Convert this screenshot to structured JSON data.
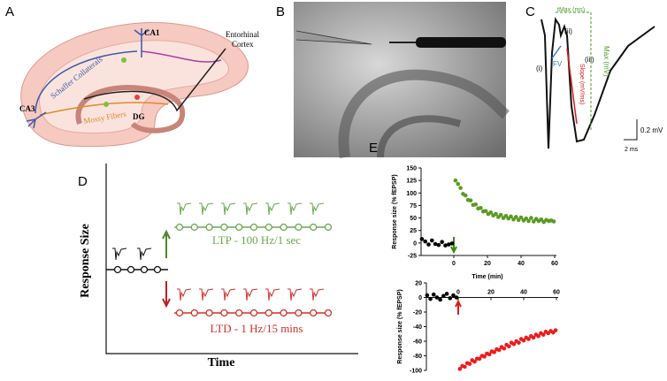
{
  "panels": {
    "a": {
      "label": "A",
      "ca1": "CA1",
      "entorhinal_cortex": [
        "Entorhinal",
        "Cortex"
      ],
      "schaffer": "Schaffer Collaterals",
      "ca3": "CA3",
      "mossy": "Mossy Fibers",
      "dg": "DG"
    },
    "b": {
      "label": "B"
    },
    "c": {
      "label": "C",
      "tmax": "tMax (ms)",
      "ii": "(ii)",
      "max": "Max (mV)",
      "i": "(i)",
      "fv": "FV",
      "slope": "Slope (mV/ms)",
      "iii": "(iii)",
      "scale_v": "0.2 mV",
      "scale_t": "2 ms"
    },
    "d": {
      "label": "D",
      "y_label": "Response Size",
      "x_label": "Time",
      "ltp": "LTP - 100 Hz/1 sec",
      "ltd": "LTD - 1 Hz/15 mins"
    },
    "e": {
      "label": "E"
    }
  },
  "chart_data": [
    {
      "type": "scatter",
      "ylabel": "Response size (% fEPSP)",
      "xlabel": "Time (min)",
      "xlim": [
        -20,
        60
      ],
      "xticks": [
        0,
        20,
        40,
        60
      ],
      "ylim": [
        -25,
        150
      ],
      "yticks": [
        -25,
        0,
        25,
        50,
        75,
        100,
        125,
        150
      ],
      "series": [
        {
          "color": "#000000",
          "x": [
            -19,
            -17,
            -15,
            -13,
            -11,
            -9,
            -7,
            -5,
            -3,
            -1
          ],
          "values": [
            8,
            3,
            -3,
            5,
            -2,
            -4,
            2,
            -5,
            -3,
            -1
          ]
        },
        {
          "color": "#5a9a22",
          "x": [
            1,
            2.5,
            4,
            5.5,
            7,
            8.5,
            10,
            11.5,
            13,
            14.5,
            16,
            17.5,
            19,
            20.5,
            22,
            23.5,
            25,
            26.5,
            28,
            29.5,
            31,
            32.5,
            34,
            35.5,
            37,
            38.5,
            40,
            41.5,
            43,
            44.5,
            46,
            47.5,
            49,
            50.5,
            52,
            53.5,
            55,
            56.5,
            58,
            59.5
          ],
          "values": [
            125,
            118,
            110,
            98,
            95,
            86,
            85,
            76,
            77,
            69,
            70,
            63,
            64,
            58,
            61,
            55,
            58,
            52,
            56,
            50,
            54,
            49,
            53,
            47,
            52,
            46,
            51,
            45,
            49,
            44,
            50,
            43,
            48,
            44,
            47,
            42,
            46,
            44,
            45,
            43
          ]
        }
      ]
    },
    {
      "type": "scatter",
      "ylabel": "Response size (% fEPSP)",
      "xlim": [
        -20,
        60
      ],
      "xticks": [
        0,
        20,
        40,
        60
      ],
      "ylim": [
        -100,
        20
      ],
      "yticks": [
        -100,
        -80,
        -60,
        -40,
        -20,
        0,
        20
      ],
      "series": [
        {
          "color": "#000000",
          "x": [
            -19,
            -17,
            -15,
            -13,
            -11,
            -9,
            -7,
            -5,
            -3,
            -1
          ],
          "values": [
            3,
            -2,
            4,
            0,
            -3,
            2,
            5,
            -1,
            3,
            0
          ]
        },
        {
          "color": "#ee1c1c",
          "x": [
            1,
            2.5,
            4,
            5.5,
            7,
            8.5,
            10,
            11.5,
            13,
            14.5,
            16,
            17.5,
            19,
            20.5,
            22,
            23.5,
            25,
            26.5,
            28,
            29.5,
            31,
            32.5,
            34,
            35.5,
            37,
            38.5,
            40,
            41.5,
            43,
            44.5,
            46,
            47.5,
            49,
            50.5,
            52,
            53.5,
            55,
            56.5,
            58,
            59.5
          ],
          "values": [
            -98,
            -94,
            -95,
            -90,
            -91,
            -86,
            -88,
            -84,
            -84,
            -80,
            -81,
            -77,
            -78,
            -74,
            -75,
            -71,
            -72,
            -68,
            -70,
            -65,
            -67,
            -62,
            -64,
            -60,
            -62,
            -57,
            -59,
            -55,
            -57,
            -53,
            -55,
            -51,
            -53,
            -49,
            -51,
            -47,
            -49,
            -46,
            -48,
            -45
          ]
        }
      ]
    }
  ]
}
